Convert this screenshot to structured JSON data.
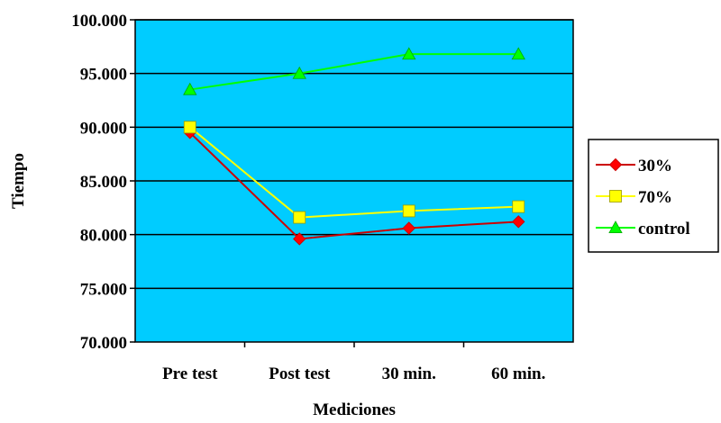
{
  "chart_data": {
    "type": "line",
    "title": "",
    "xlabel": "Mediciones",
    "ylabel": "Tiempo",
    "categories": [
      "Pre test",
      "Post test",
      "30 min.",
      "60 min."
    ],
    "ylim": [
      70,
      100
    ],
    "yticks": [
      70,
      75,
      80,
      85,
      90,
      95,
      100
    ],
    "ytick_labels": [
      "70.000",
      "75.000",
      "80.000",
      "85.000",
      "90.000",
      "95.000",
      "100.000"
    ],
    "grid": true,
    "plot_background": "#00CCFF",
    "legend_position": "right",
    "series": [
      {
        "name": "30%",
        "color": "#FF0000",
        "line_color": "#CC0000",
        "marker": "diamond",
        "values": [
          89.5,
          79.6,
          80.6,
          81.2
        ]
      },
      {
        "name": "70%",
        "color": "#FFFF00",
        "line_color": "#FFFF00",
        "marker": "square",
        "values": [
          90.0,
          81.6,
          82.2,
          82.6
        ]
      },
      {
        "name": "control",
        "color": "#00FF00",
        "line_color": "#00FF00",
        "marker": "triangle",
        "values": [
          93.5,
          95.0,
          96.8,
          96.8
        ]
      }
    ]
  }
}
